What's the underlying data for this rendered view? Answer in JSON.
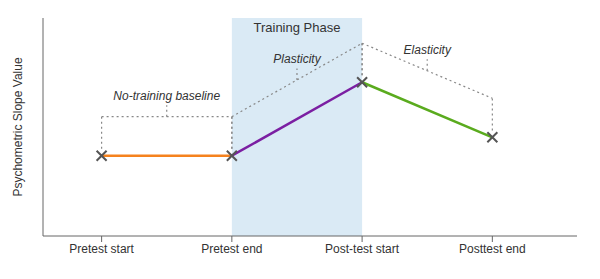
{
  "chart_data": {
    "type": "line",
    "categories": [
      "Pretest start",
      "Pretest end",
      "Post-test start",
      "Posttest end"
    ],
    "series": [
      {
        "color": "#f5821e",
        "values": [
          0.3,
          0.3,
          null,
          null
        ]
      },
      {
        "color": "#7b1fa2",
        "values": [
          null,
          0.3,
          0.62,
          null
        ]
      },
      {
        "color": "#5aab1e",
        "values": [
          null,
          null,
          0.62,
          0.38
        ]
      },
      {
        "type": "scatter",
        "marker": "x",
        "color": "#555555",
        "values": [
          0.3,
          0.3,
          0.62,
          0.38
        ]
      }
    ],
    "y_label": "Psychometric Slope Value",
    "ylim": [
      -0.05,
      0.9
    ],
    "tick_labels": "x",
    "grid": false,
    "annotations": [
      {
        "text": "Training Phase",
        "from": "Pretest end",
        "to": "Post-test start",
        "color": "#daeaf5"
      },
      {
        "text": "No-training baseline",
        "from": "Pretest start",
        "to": "Pretest end"
      },
      {
        "text": "Plasticity",
        "from": "Pretest end",
        "to": "Post-test start"
      },
      {
        "text": "Elasticity",
        "from": "Post-test start",
        "to": "Posttest end"
      }
    ]
  }
}
